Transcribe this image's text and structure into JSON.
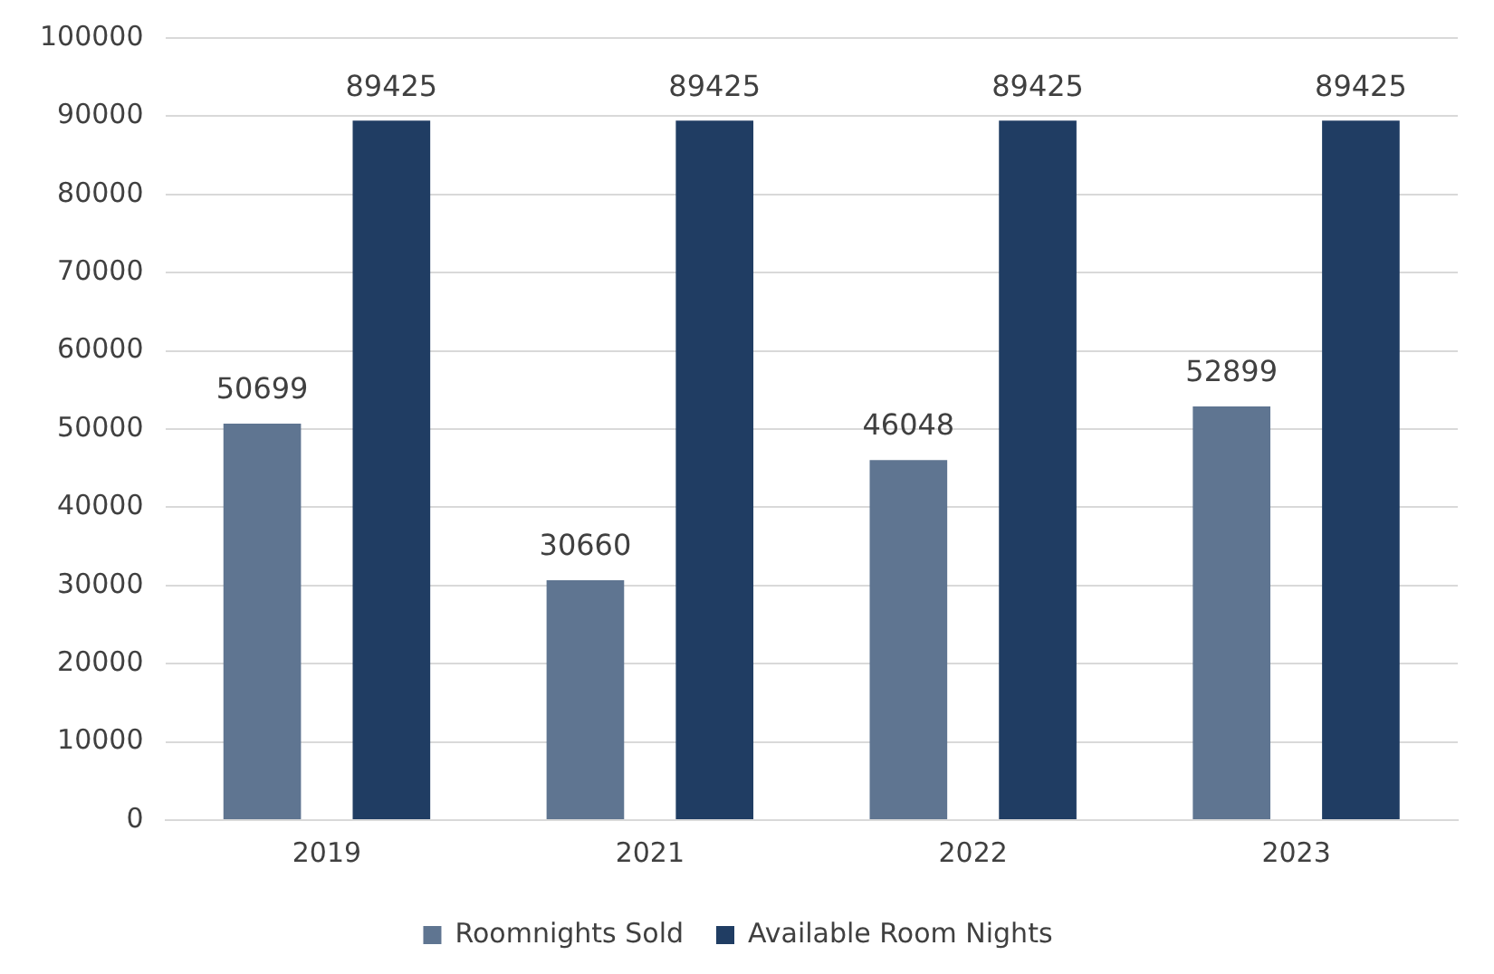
{
  "chart_data": {
    "type": "bar",
    "categories": [
      "2019",
      "2021",
      "2022",
      "2023"
    ],
    "series": [
      {
        "name": "Roomnights Sold",
        "color": "#5f7591",
        "values": [
          50699,
          30660,
          46048,
          52899
        ]
      },
      {
        "name": "Available Room Nights",
        "color": "#203d63",
        "values": [
          89425,
          89425,
          89425,
          89425
        ]
      }
    ],
    "ylim": [
      0,
      100000
    ],
    "yticks": [
      0,
      10000,
      20000,
      30000,
      40000,
      50000,
      60000,
      70000,
      80000,
      90000,
      100000
    ],
    "grid": "y",
    "legend": "bottom",
    "data_labels": true
  }
}
